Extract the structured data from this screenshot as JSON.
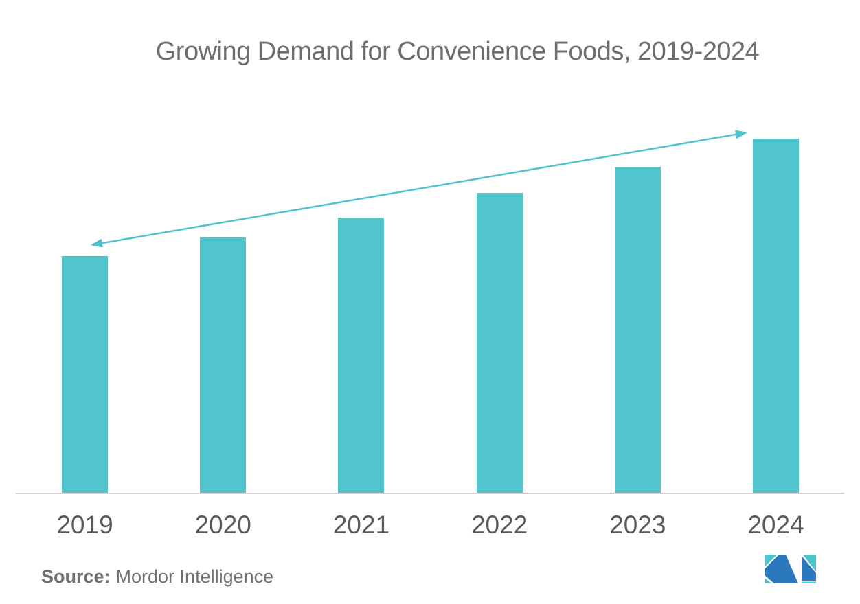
{
  "page": {
    "background": "#ffffff"
  },
  "chart_data": {
    "type": "bar",
    "title": "Growing Demand for Convenience Foods, 2019-2024",
    "categories": [
      "2019",
      "2020",
      "2021",
      "2022",
      "2023",
      "2024"
    ],
    "values": [
      345,
      372,
      401,
      437,
      475,
      516
    ],
    "values_note": "No numeric value axis is shown in the chart; values are estimated relative bar heights (pixels) read from the image.",
    "xlabel": "",
    "ylabel": "",
    "ylim": [
      0,
      560
    ],
    "grid": false,
    "legend": "none",
    "bar_color": "#52c4cb",
    "axis_line_color": "#d7d2d2",
    "tick_label_color": "#58595b",
    "title_color": "#6d6e70",
    "trend_arrow": {
      "present": true,
      "style": "double-headed straight line from first bar top to last bar top",
      "color": "#4ec3cd",
      "from_category": "2019",
      "to_category": "2024"
    }
  },
  "footer": {
    "source_label": "Source:",
    "source_value": "Mordor Intelligence",
    "text_color": "#6f7073",
    "logo": {
      "name": "mordor-intelligence-logo",
      "teal": "#49c3cc",
      "blue": "#2c78bc",
      "cyan_strip": "#38d6e3"
    }
  }
}
